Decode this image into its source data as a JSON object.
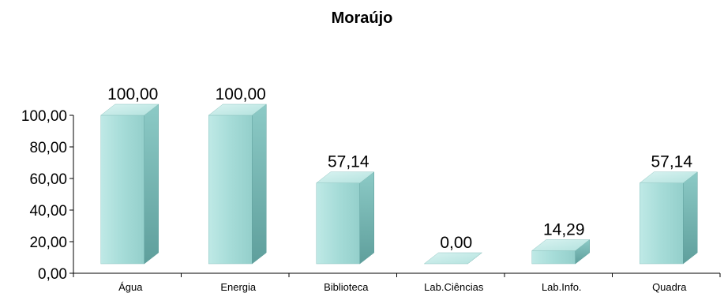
{
  "chart_data": {
    "type": "bar",
    "style": "3d-column",
    "title": "Moraújo",
    "categories": [
      "Água",
      "Energia",
      "Biblioteca",
      "Lab.Ciências",
      "Lab.Info.",
      "Quadra"
    ],
    "values": [
      100.0,
      100.0,
      57.14,
      0.0,
      14.29,
      57.14
    ],
    "data_labels": [
      "100,00",
      "100,00",
      "57,14",
      "0,00",
      "14,29",
      "57,14"
    ],
    "y_ticks": [
      "0,00",
      "20,00",
      "40,00",
      "60,00",
      "80,00",
      "100,00"
    ],
    "ylim": [
      0,
      100
    ],
    "grid": false,
    "legend": "none",
    "xlabel": "",
    "ylabel": "",
    "colors": {
      "front": "#a6dcd8",
      "side": "#6fb4b0",
      "top": "#c6ece9",
      "axis": "#000000"
    }
  }
}
